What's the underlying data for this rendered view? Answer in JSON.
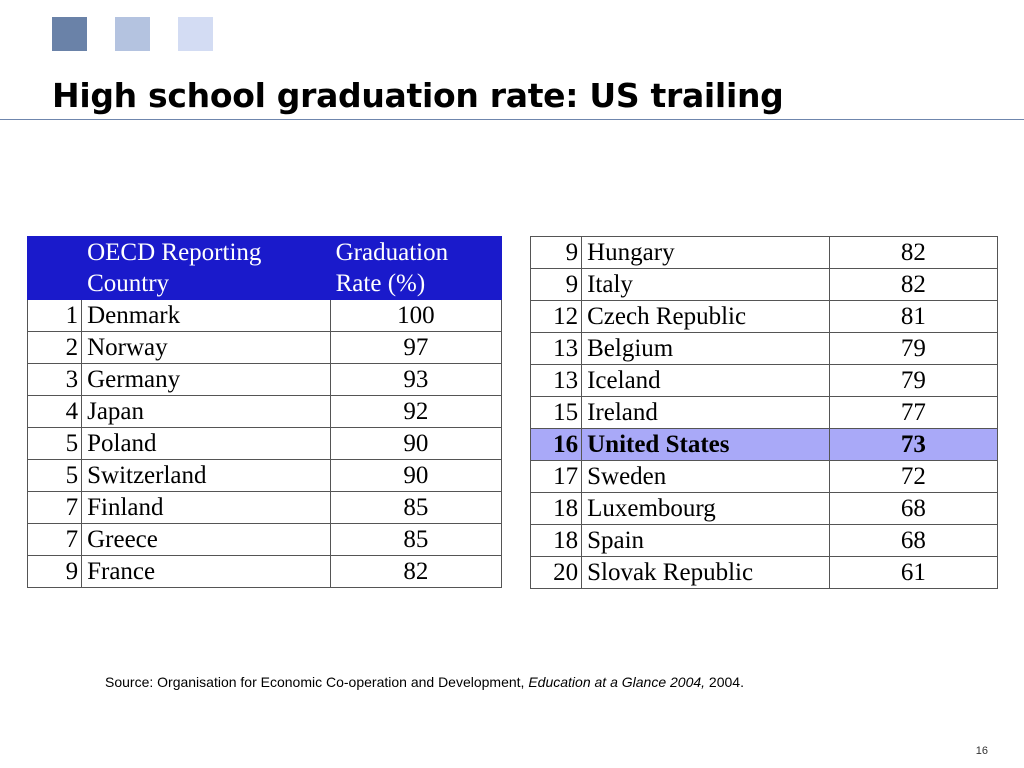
{
  "slide": {
    "title": "High school graduation rate: US trailing",
    "page_number": "16",
    "accent_colors": [
      "#6a82a8",
      "#b4c3e0",
      "#d3dcf3"
    ]
  },
  "table_left": {
    "header": {
      "country": "OECD Reporting Country",
      "rate": "Graduation Rate (%)"
    },
    "rows": [
      {
        "rank": "1",
        "country": "Denmark",
        "rate": "100"
      },
      {
        "rank": "2",
        "country": "Norway",
        "rate": "97"
      },
      {
        "rank": "3",
        "country": "Germany",
        "rate": "93"
      },
      {
        "rank": "4",
        "country": "Japan",
        "rate": "92"
      },
      {
        "rank": "5",
        "country": "Poland",
        "rate": "90"
      },
      {
        "rank": "5",
        "country": "Switzerland",
        "rate": "90"
      },
      {
        "rank": "7",
        "country": "Finland",
        "rate": "85"
      },
      {
        "rank": "7",
        "country": "Greece",
        "rate": "85"
      },
      {
        "rank": "9",
        "country": "France",
        "rate": "82"
      }
    ]
  },
  "table_right": {
    "highlight_color": "#a9a9f8",
    "rows": [
      {
        "rank": "9",
        "country": "Hungary",
        "rate": "82"
      },
      {
        "rank": "9",
        "country": "Italy",
        "rate": "82"
      },
      {
        "rank": "12",
        "country": "Czech Republic",
        "rate": "81"
      },
      {
        "rank": "13",
        "country": "Belgium",
        "rate": "79"
      },
      {
        "rank": "13",
        "country": "Iceland",
        "rate": "79"
      },
      {
        "rank": "15",
        "country": "Ireland",
        "rate": "77"
      },
      {
        "rank": "16",
        "country": "United States",
        "rate": "73"
      },
      {
        "rank": "17",
        "country": "Sweden",
        "rate": "72"
      },
      {
        "rank": "18",
        "country": "Luxembourg",
        "rate": "68"
      },
      {
        "rank": "18",
        "country": "Spain",
        "rate": "68"
      },
      {
        "rank": "20",
        "country": "Slovak Republic",
        "rate": "61"
      }
    ]
  },
  "source": {
    "prefix": "Source: Organisation for Economic Co-operation and Development, ",
    "publication": "Education at a Glance 2004,",
    "suffix": " 2004."
  }
}
